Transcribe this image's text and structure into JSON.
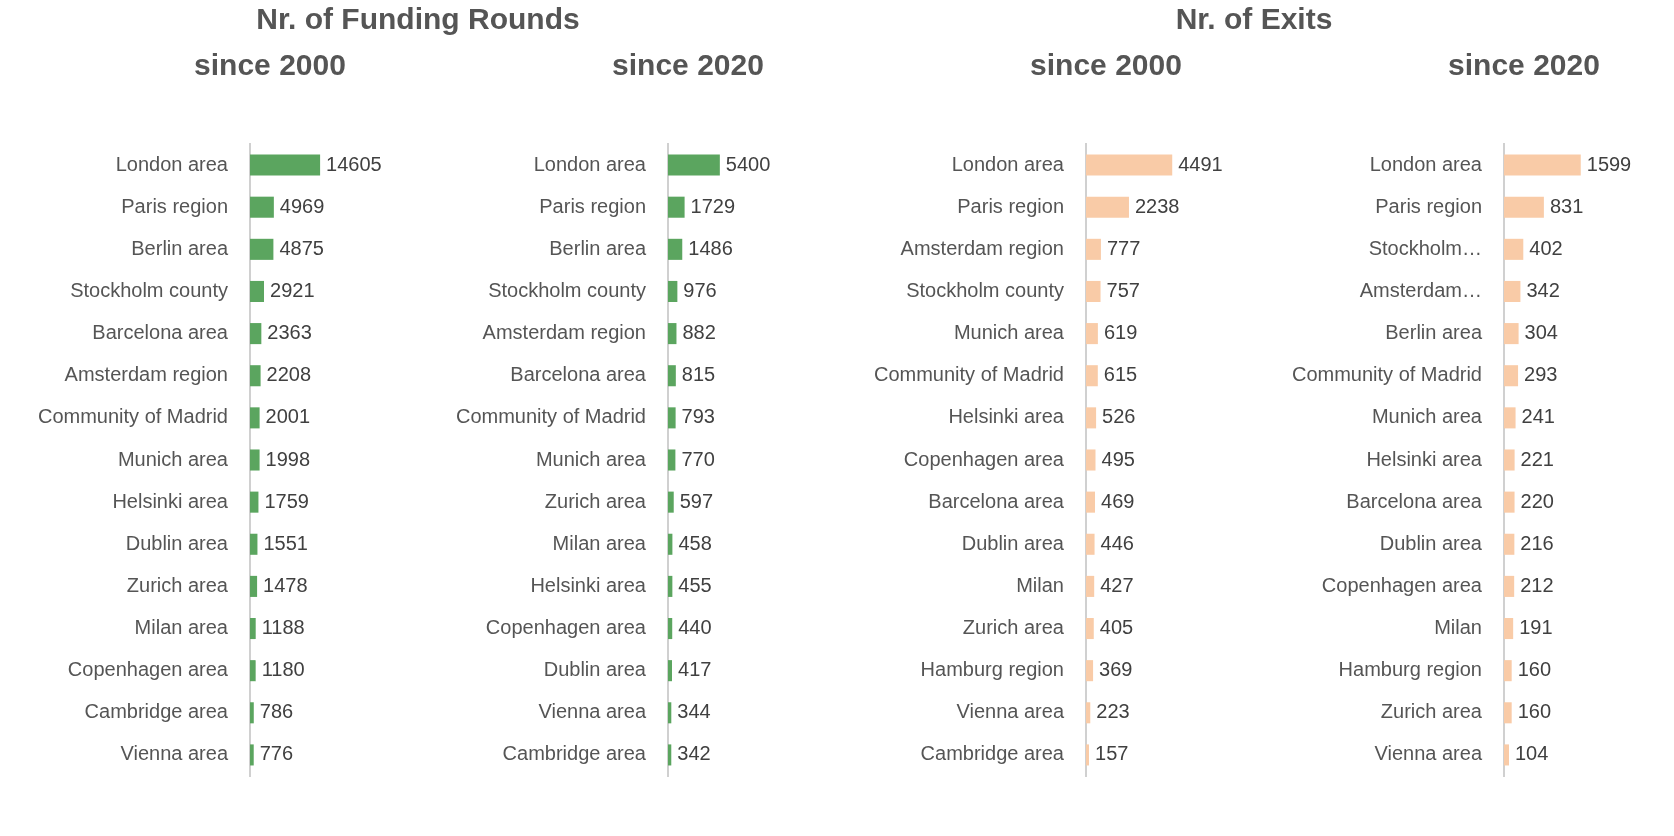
{
  "chart_data": [
    {
      "type": "bar",
      "orientation": "horizontal",
      "title": "Nr. of  Funding Rounds",
      "subtitle": "since 2000",
      "categories": [
        "London area",
        "Paris region",
        "Berlin area",
        "Stockholm county",
        "Barcelona area",
        "Amsterdam region",
        "Community of Madrid",
        "Munich area",
        "Helsinki area",
        "Dublin area",
        "Zurich area",
        "Milan area",
        "Copenhagen area",
        "Cambridge area",
        "Vienna area"
      ],
      "values": [
        14605,
        4969,
        4875,
        2921,
        2363,
        2208,
        2001,
        1998,
        1759,
        1551,
        1478,
        1188,
        1180,
        786,
        776
      ],
      "color": "#5ba55f",
      "data_labels": true,
      "tick_labels": "y",
      "legend": false
    },
    {
      "type": "bar",
      "orientation": "horizontal",
      "subtitle": "since 2020",
      "categories": [
        "London area",
        "Paris region",
        "Berlin area",
        "Stockholm county",
        "Amsterdam region",
        "Barcelona area",
        "Community of Madrid",
        "Munich area",
        "Zurich area",
        "Milan area",
        "Helsinki area",
        "Copenhagen area",
        "Dublin area",
        "Vienna area",
        "Cambridge area"
      ],
      "values": [
        5400,
        1729,
        1486,
        976,
        882,
        815,
        793,
        770,
        597,
        458,
        455,
        440,
        417,
        344,
        342
      ],
      "color": "#5ba55f",
      "data_labels": true,
      "tick_labels": "y",
      "legend": false
    },
    {
      "type": "bar",
      "orientation": "horizontal",
      "title": "Nr. of  Exits",
      "subtitle": "since 2000",
      "categories": [
        "London area",
        "Paris region",
        "Amsterdam region",
        "Stockholm county",
        "Munich area",
        "Community of Madrid",
        "Helsinki area",
        "Copenhagen area",
        "Barcelona area",
        "Dublin area",
        "Milan",
        "Zurich area",
        "Hamburg region",
        "Vienna area",
        "Cambridge area"
      ],
      "values": [
        4491,
        2238,
        777,
        757,
        619,
        615,
        526,
        495,
        469,
        446,
        427,
        405,
        369,
        223,
        157
      ],
      "color": "#f9cba7",
      "data_labels": true,
      "tick_labels": "y",
      "legend": false
    },
    {
      "type": "bar",
      "orientation": "horizontal",
      "subtitle": "since 2020",
      "categories": [
        "London area",
        "Paris region",
        "Stockholm…",
        "Amsterdam…",
        "Berlin area",
        "Community of Madrid",
        "Munich area",
        "Helsinki area",
        "Barcelona area",
        "Dublin area",
        "Copenhagen area",
        "Milan",
        "Hamburg region",
        "Zurich area",
        "Vienna area"
      ],
      "values": [
        1599,
        831,
        402,
        342,
        304,
        293,
        241,
        221,
        220,
        216,
        212,
        191,
        160,
        160,
        104
      ],
      "color": "#f9cba7",
      "data_labels": true,
      "tick_labels": "y",
      "legend": false
    }
  ]
}
